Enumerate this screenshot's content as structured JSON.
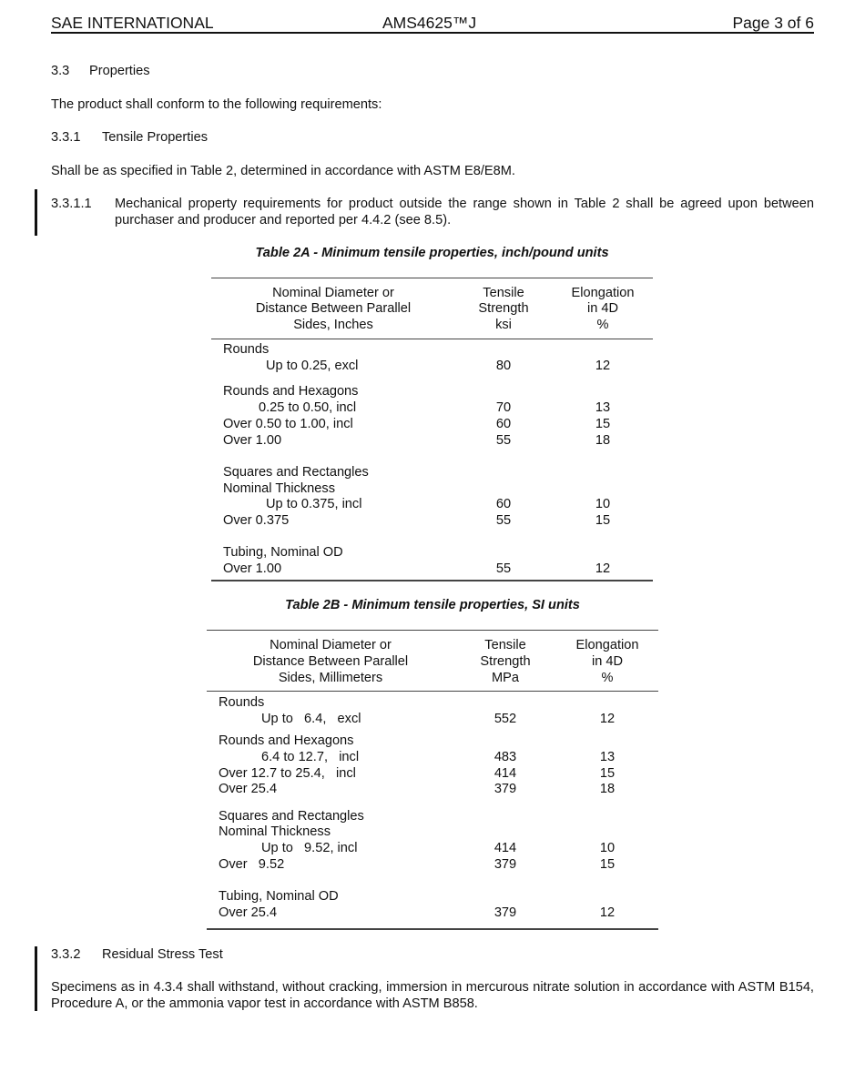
{
  "header": {
    "left": "SAE INTERNATIONAL",
    "center": "AMS4625™J",
    "right": "Page 3 of 6"
  },
  "sections": {
    "s33_num": "3.3",
    "s33_title": "Properties",
    "s33_text": "The product shall conform to the following requirements:",
    "s331_num": "3.3.1",
    "s331_title": "Tensile Properties",
    "s331_text": "Shall be as specified in Table 2, determined in accordance with ASTM E8/E8M.",
    "s3311_num": "3.3.1.1",
    "s3311_text": "Mechanical property requirements for product outside the range shown in Table 2 shall be agreed upon between purchaser and producer and reported per 4.4.2 (see 8.5).",
    "s332_num": "3.3.2",
    "s332_title": "Residual Stress Test",
    "s332_text": "Specimens as in 4.3.4 shall withstand, without cracking, immersion in mercurous nitrate solution in accordance with ASTM B154, Procedure A, or the ammonia vapor test in accordance with ASTM B858."
  },
  "tables": [
    {
      "caption": "Table 2A - Minimum tensile properties, inch/pound units",
      "headers": [
        [
          "Nominal Diameter or",
          "Distance Between Parallel",
          "Sides, Inches"
        ],
        [
          "Tensile",
          "Strength",
          "ksi"
        ],
        [
          "Elongation",
          "in 4D",
          "%"
        ]
      ],
      "rows": [
        {
          "label": "Rounds",
          "strength": "",
          "elongation": ""
        },
        {
          "label": "Up to 0.25, excl",
          "strength": "80",
          "elongation": "12"
        },
        {
          "label": "Rounds and Hexagons",
          "strength": "",
          "elongation": ""
        },
        {
          "label": "0.25 to 0.50, incl",
          "strength": "70",
          "elongation": "13"
        },
        {
          "label": "Over 0.50 to 1.00, incl",
          "strength": "60",
          "elongation": "15"
        },
        {
          "label": "Over 1.00",
          "strength": "55",
          "elongation": "18"
        },
        {
          "label": "Squares and Rectangles",
          "strength": "",
          "elongation": ""
        },
        {
          "label": "Nominal Thickness",
          "strength": "",
          "elongation": ""
        },
        {
          "label": "Up to 0.375, incl",
          "strength": "60",
          "elongation": "10"
        },
        {
          "label": "Over 0.375",
          "strength": "55",
          "elongation": "15"
        },
        {
          "label": "Tubing, Nominal OD",
          "strength": "",
          "elongation": ""
        },
        {
          "label": "Over 1.00",
          "strength": "55",
          "elongation": "12"
        }
      ]
    },
    {
      "caption": "Table 2B - Minimum tensile properties, SI units",
      "headers": [
        [
          "Nominal Diameter or",
          "Distance Between Parallel",
          "Sides, Millimeters"
        ],
        [
          "Tensile",
          "Strength",
          "MPa"
        ],
        [
          "Elongation",
          "in 4D",
          "%"
        ]
      ],
      "rows": [
        {
          "label": "Rounds",
          "strength": "",
          "elongation": ""
        },
        {
          "label": "Up to   6.4,   excl",
          "strength": "552",
          "elongation": "12"
        },
        {
          "label": "Rounds and Hexagons",
          "strength": "",
          "elongation": ""
        },
        {
          "label": "6.4 to 12.7,   incl",
          "strength": "483",
          "elongation": "13"
        },
        {
          "label": "Over 12.7 to 25.4,   incl",
          "strength": "414",
          "elongation": "15"
        },
        {
          "label": "Over 25.4",
          "strength": "379",
          "elongation": "18"
        },
        {
          "label": "Squares and Rectangles",
          "strength": "",
          "elongation": ""
        },
        {
          "label": "Nominal Thickness",
          "strength": "",
          "elongation": ""
        },
        {
          "label": "Up to   9.52, incl",
          "strength": "414",
          "elongation": "10"
        },
        {
          "label": "Over   9.52",
          "strength": "379",
          "elongation": "15"
        },
        {
          "label": "Tubing, Nominal OD",
          "strength": "",
          "elongation": ""
        },
        {
          "label": "Over 25.4",
          "strength": "379",
          "elongation": "12"
        }
      ]
    }
  ]
}
